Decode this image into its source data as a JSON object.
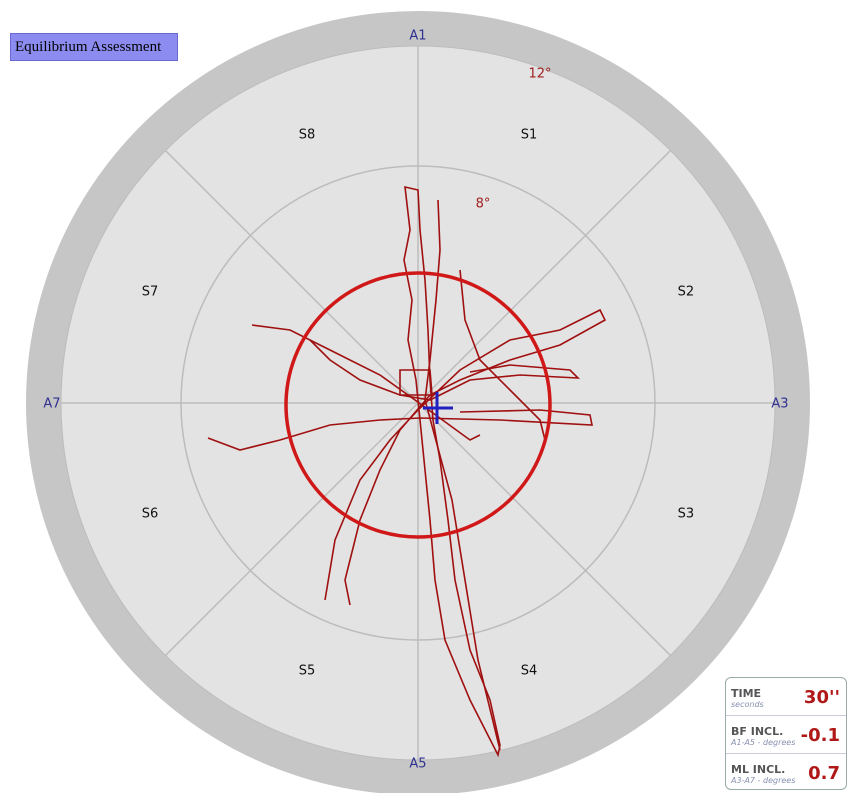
{
  "header": {
    "title": "Equilibrium Assessment"
  },
  "axes": {
    "top": "A1",
    "right": "A3",
    "bottom": "A5",
    "left": "A7"
  },
  "sectors": [
    "S1",
    "S2",
    "S3",
    "S4",
    "S5",
    "S6",
    "S7",
    "S8"
  ],
  "rings": {
    "outer": "12°",
    "inner": "8°"
  },
  "stats": [
    {
      "label": "TIME",
      "unit": "seconds",
      "value": "30''"
    },
    {
      "label": "BF INCL.",
      "unit": "A1-A5 - degrees",
      "value": "-0.1"
    },
    {
      "label": "ML INCL.",
      "unit": "A3-A7 - degrees",
      "value": "0.7"
    }
  ]
}
